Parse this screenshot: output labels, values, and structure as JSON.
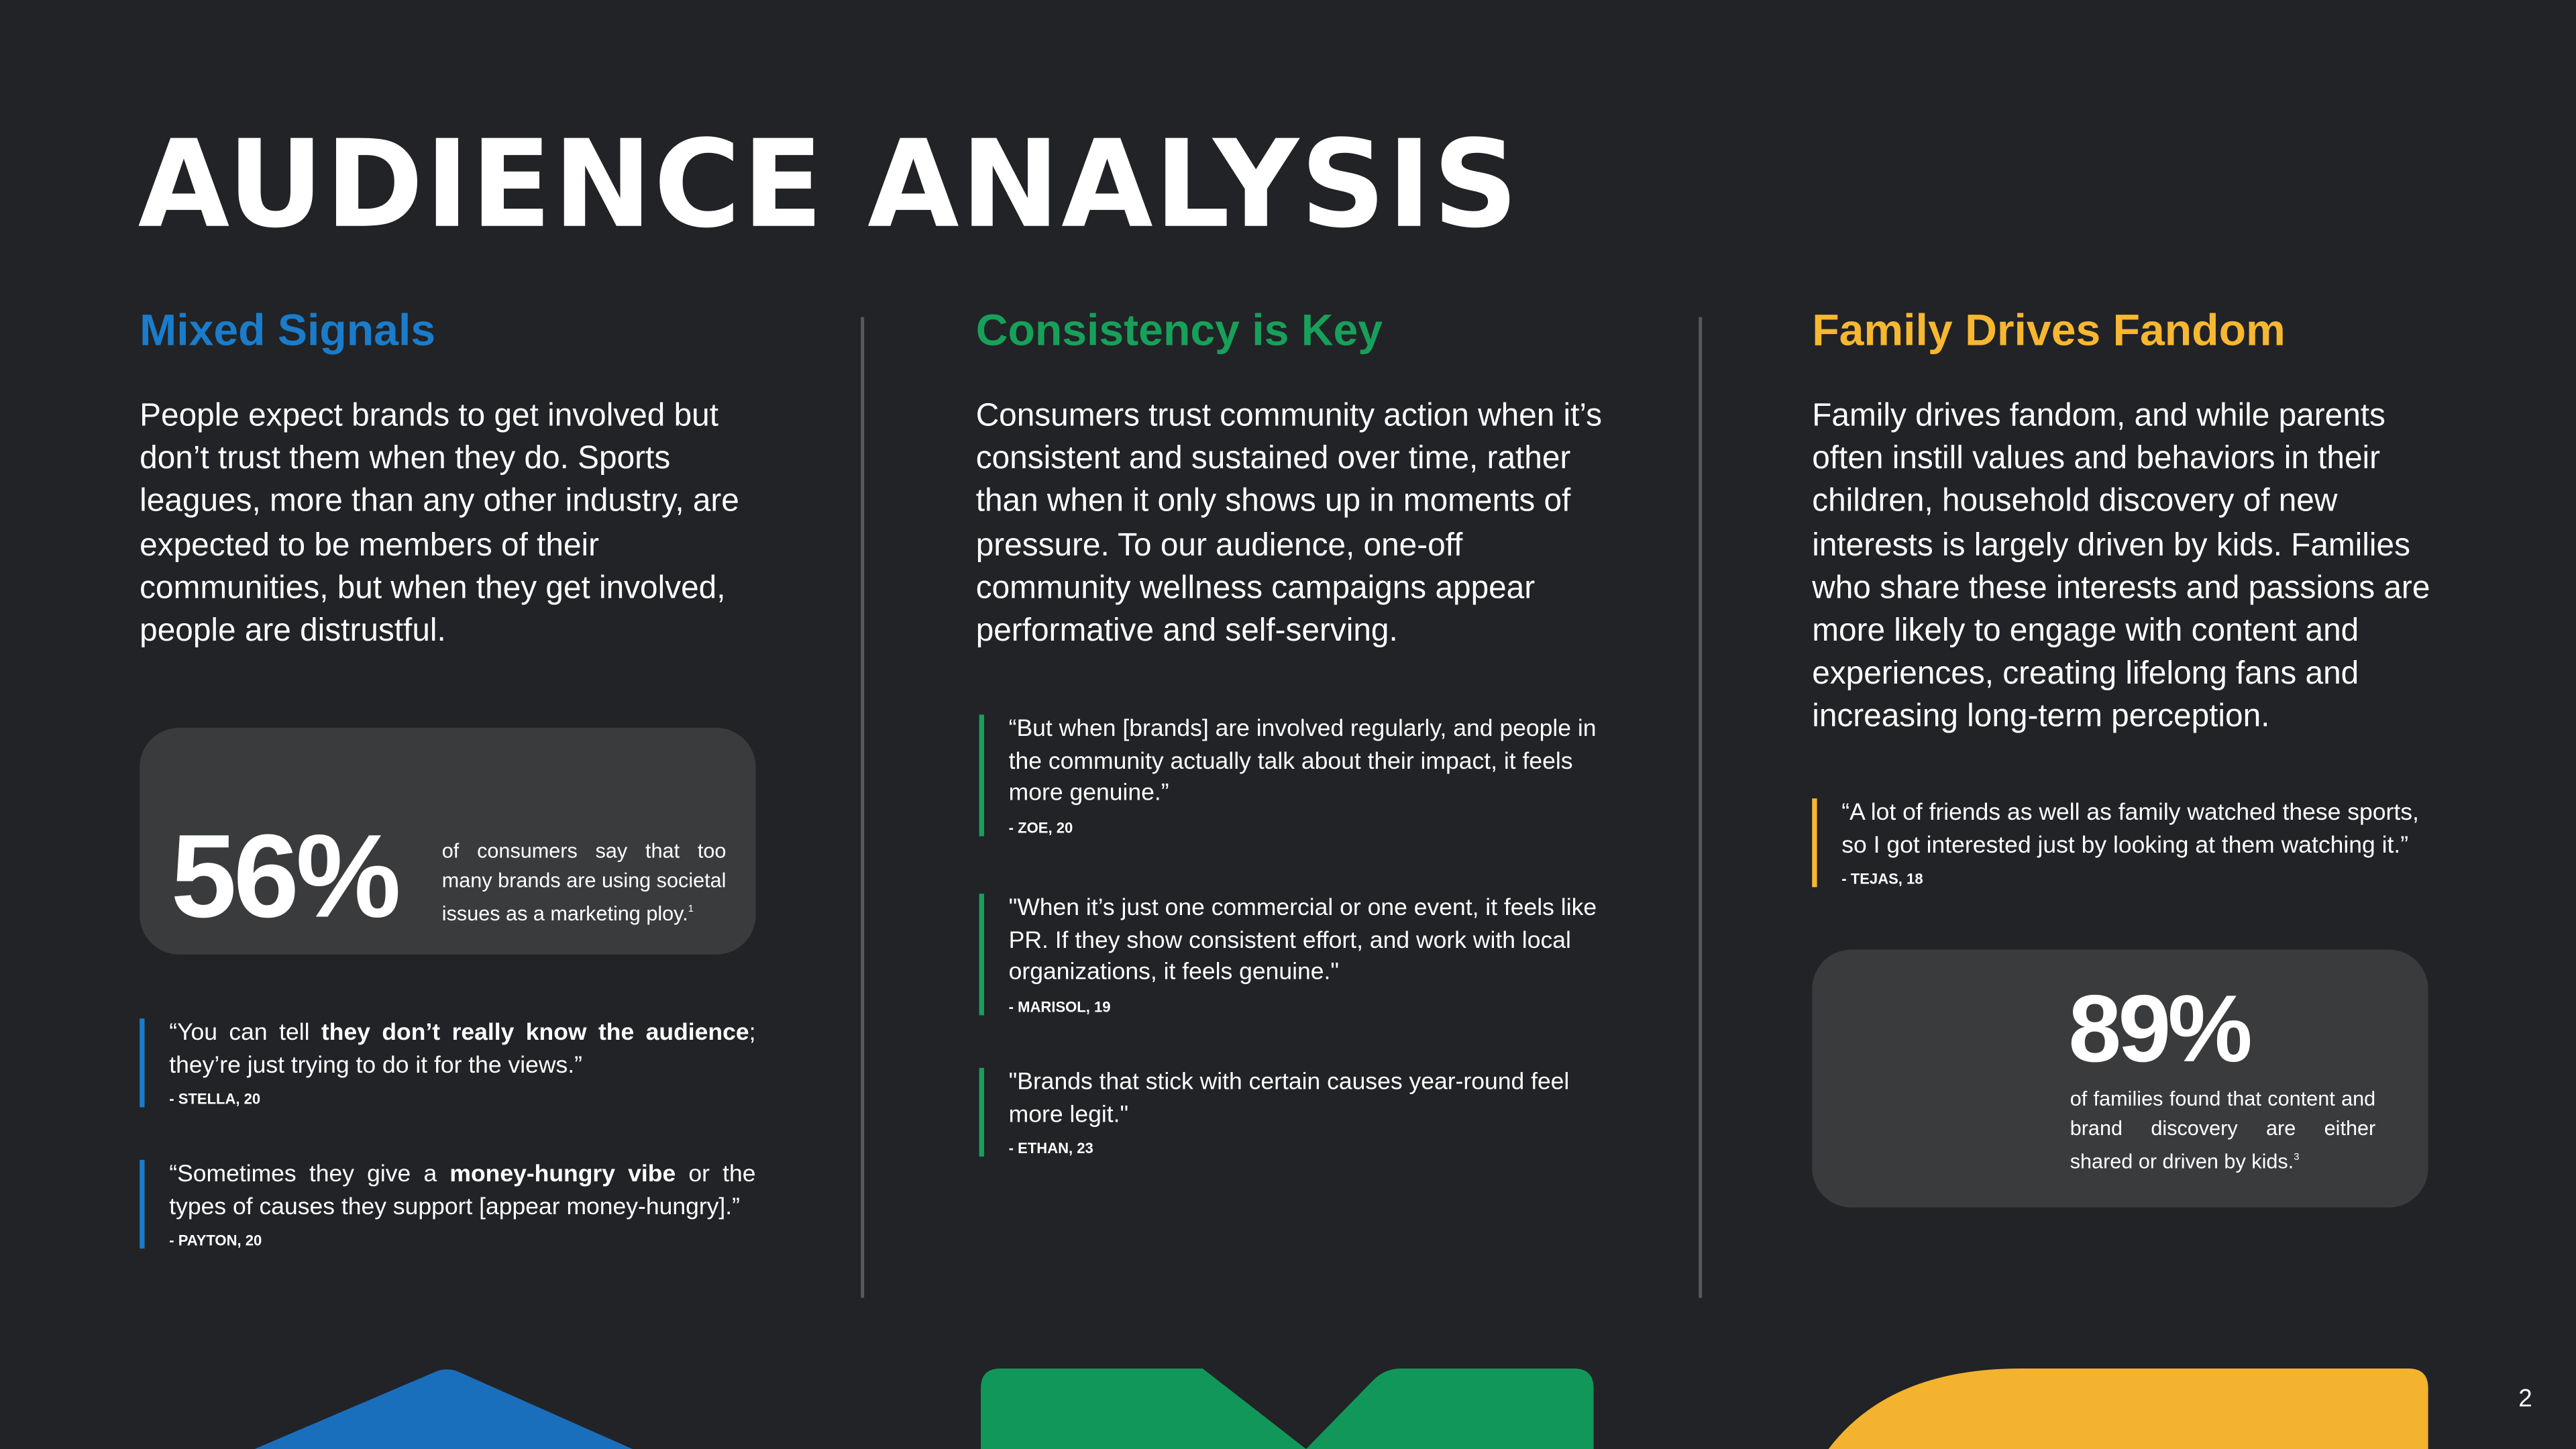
{
  "header": {
    "title": "AUDIENCE ANALYSIS"
  },
  "columns": [
    {
      "heading": "Mixed Signals",
      "body": "People expect brands to get involved but don’t trust them when they do. Sports leagues, more than any other industry, are expected to be members of their communities, but when they get involved, people are distrustful.",
      "stat": {
        "value": "56%",
        "text": "of consumers say that too many brands are using societal issues as a marketing ploy.",
        "footnote": "1"
      },
      "quotes": [
        {
          "segments": [
            "“You can tell ",
            "they don’t really know the audience",
            "; they’re just trying to do it for the views.”"
          ],
          "author": "- STELLA, 20"
        },
        {
          "segments": [
            "“Sometimes they give a ",
            "money-hungry vibe",
            " or the types of causes they support [appear money-hungry].”"
          ],
          "author": "- PAYTON, 20"
        }
      ]
    },
    {
      "heading": "Consistency is Key",
      "body": "Consumers trust community action when it’s consistent and sustained over time, rather than when it only shows up in moments of pressure. To our audience, one-off community wellness campaigns appear performative and self-serving.",
      "quotes": [
        {
          "segments": [
            "“But when [brands] are involved regularly, and people in the community actually talk about their impact, it feels more genuine.”"
          ],
          "author": "- ZOE, 20"
        },
        {
          "segments": [
            "\"When it’s just one commercial or one event, it feels like PR. If they show consistent effort, and work with local organizations, it feels genuine.\""
          ],
          "author": "- MARISOL, 19"
        },
        {
          "segments": [
            "\"Brands that stick with certain causes year-round feel more legit.\""
          ],
          "author": "- ETHAN, 23"
        }
      ]
    },
    {
      "heading": "Family Drives Fandom",
      "body": "Family drives fandom, and while parents often instill values and behaviors in their children, household discovery of new interests is largely driven by kids. Families who share these interests and passions are more likely to engage with content and experiences, creating lifelong fans and increasing long-term perception.",
      "quotes": [
        {
          "segments": [
            "“A lot of friends as well as family watched these sports, so I got interested just by looking at them watching it.”"
          ],
          "author": "- TEJAS, 18"
        }
      ],
      "stat": {
        "value": "89%",
        "text": "of families found that content and brand discovery are either shared or driven by kids.",
        "footnote": "3"
      }
    }
  ],
  "page_number": "2"
}
